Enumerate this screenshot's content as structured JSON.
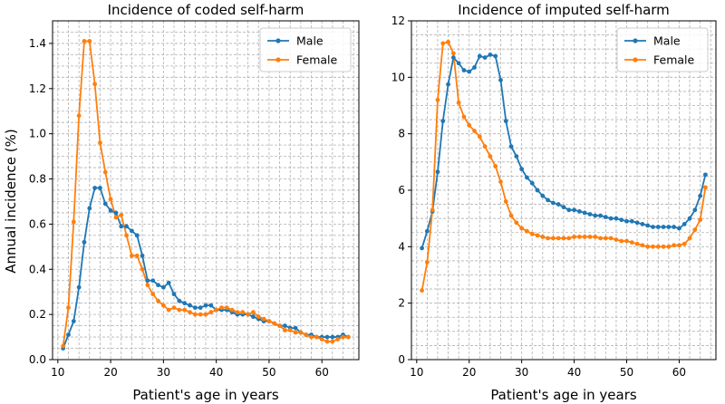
{
  "figure": {
    "ylabel": "Annual incidence (%)"
  },
  "chart_data": [
    {
      "type": "line",
      "title": "Incidence of coded self-harm",
      "xlabel": "Patient's age in years",
      "ylabel": "Annual incidence (%)",
      "xlim": [
        9,
        67
      ],
      "ylim": [
        0,
        1.5
      ],
      "xticks": [
        10,
        20,
        30,
        40,
        50,
        60
      ],
      "yticks": [
        0.0,
        0.2,
        0.4,
        0.6,
        0.8,
        1.0,
        1.2,
        1.4
      ],
      "ytick_labels": [
        "0.0",
        "0.2",
        "0.4",
        "0.6",
        "0.8",
        "1.0",
        "1.2",
        "1.4"
      ],
      "grid": true,
      "legend": "top-right",
      "x": [
        11,
        12,
        13,
        14,
        15,
        16,
        17,
        18,
        19,
        20,
        21,
        22,
        23,
        24,
        25,
        26,
        27,
        28,
        29,
        30,
        31,
        32,
        33,
        34,
        35,
        36,
        37,
        38,
        39,
        40,
        41,
        42,
        43,
        44,
        45,
        46,
        47,
        48,
        49,
        50,
        51,
        52,
        53,
        54,
        55,
        56,
        57,
        58,
        59,
        60,
        61,
        62,
        63,
        64,
        65
      ],
      "series": [
        {
          "name": "Male",
          "color": "#1f77b4",
          "values": [
            0.05,
            0.11,
            0.17,
            0.32,
            0.52,
            0.67,
            0.76,
            0.76,
            0.69,
            0.66,
            0.65,
            0.59,
            0.59,
            0.57,
            0.55,
            0.46,
            0.35,
            0.35,
            0.33,
            0.32,
            0.34,
            0.29,
            0.26,
            0.25,
            0.24,
            0.23,
            0.23,
            0.24,
            0.24,
            0.22,
            0.22,
            0.22,
            0.21,
            0.2,
            0.2,
            0.2,
            0.19,
            0.18,
            0.17,
            0.17,
            0.16,
            0.15,
            0.15,
            0.14,
            0.14,
            0.12,
            0.11,
            0.11,
            0.1,
            0.1,
            0.1,
            0.1,
            0.1,
            0.11,
            0.1
          ]
        },
        {
          "name": "Female",
          "color": "#ff7f0e",
          "values": [
            0.06,
            0.23,
            0.61,
            1.08,
            1.41,
            1.41,
            1.22,
            0.96,
            0.83,
            0.71,
            0.63,
            0.64,
            0.55,
            0.46,
            0.46,
            0.4,
            0.33,
            0.29,
            0.26,
            0.24,
            0.22,
            0.23,
            0.22,
            0.22,
            0.21,
            0.2,
            0.2,
            0.2,
            0.21,
            0.22,
            0.23,
            0.23,
            0.22,
            0.21,
            0.21,
            0.2,
            0.21,
            0.19,
            0.18,
            0.17,
            0.16,
            0.15,
            0.13,
            0.13,
            0.12,
            0.12,
            0.11,
            0.1,
            0.1,
            0.09,
            0.08,
            0.08,
            0.09,
            0.1,
            0.1
          ]
        }
      ]
    },
    {
      "type": "line",
      "title": "Incidence of imputed self-harm",
      "xlabel": "Patient's age in years",
      "ylabel": "",
      "xlim": [
        9,
        67
      ],
      "ylim": [
        0,
        12
      ],
      "xticks": [
        10,
        20,
        30,
        40,
        50,
        60
      ],
      "yticks": [
        0,
        2,
        4,
        6,
        8,
        10,
        12
      ],
      "ytick_labels": [
        "0",
        "2",
        "4",
        "6",
        "8",
        "10",
        "12"
      ],
      "grid": true,
      "legend": "top-right",
      "x": [
        11,
        12,
        13,
        14,
        15,
        16,
        17,
        18,
        19,
        20,
        21,
        22,
        23,
        24,
        25,
        26,
        27,
        28,
        29,
        30,
        31,
        32,
        33,
        34,
        35,
        36,
        37,
        38,
        39,
        40,
        41,
        42,
        43,
        44,
        45,
        46,
        47,
        48,
        49,
        50,
        51,
        52,
        53,
        54,
        55,
        56,
        57,
        58,
        59,
        60,
        61,
        62,
        63,
        64,
        65
      ],
      "series": [
        {
          "name": "Male",
          "color": "#1f77b4",
          "values": [
            3.95,
            4.55,
            5.25,
            6.65,
            8.45,
            9.75,
            10.7,
            10.5,
            10.25,
            10.2,
            10.35,
            10.75,
            10.7,
            10.8,
            10.75,
            9.9,
            8.45,
            7.55,
            7.2,
            6.75,
            6.45,
            6.25,
            6.0,
            5.8,
            5.65,
            5.55,
            5.5,
            5.4,
            5.3,
            5.3,
            5.25,
            5.2,
            5.15,
            5.1,
            5.1,
            5.05,
            5.0,
            5.0,
            4.95,
            4.9,
            4.9,
            4.85,
            4.8,
            4.75,
            4.7,
            4.7,
            4.7,
            4.7,
            4.7,
            4.65,
            4.8,
            5.0,
            5.3,
            5.8,
            6.55
          ]
        },
        {
          "name": "Female",
          "color": "#ff7f0e",
          "values": [
            2.45,
            3.45,
            5.3,
            9.2,
            11.2,
            11.25,
            10.85,
            9.1,
            8.6,
            8.3,
            8.1,
            7.9,
            7.55,
            7.2,
            6.85,
            6.3,
            5.6,
            5.1,
            4.85,
            4.65,
            4.55,
            4.45,
            4.4,
            4.35,
            4.3,
            4.3,
            4.3,
            4.3,
            4.3,
            4.35,
            4.35,
            4.35,
            4.35,
            4.35,
            4.3,
            4.3,
            4.3,
            4.25,
            4.2,
            4.2,
            4.15,
            4.1,
            4.05,
            4.0,
            4.0,
            4.0,
            4.0,
            4.0,
            4.05,
            4.05,
            4.1,
            4.3,
            4.6,
            4.95,
            6.1
          ]
        }
      ]
    }
  ]
}
